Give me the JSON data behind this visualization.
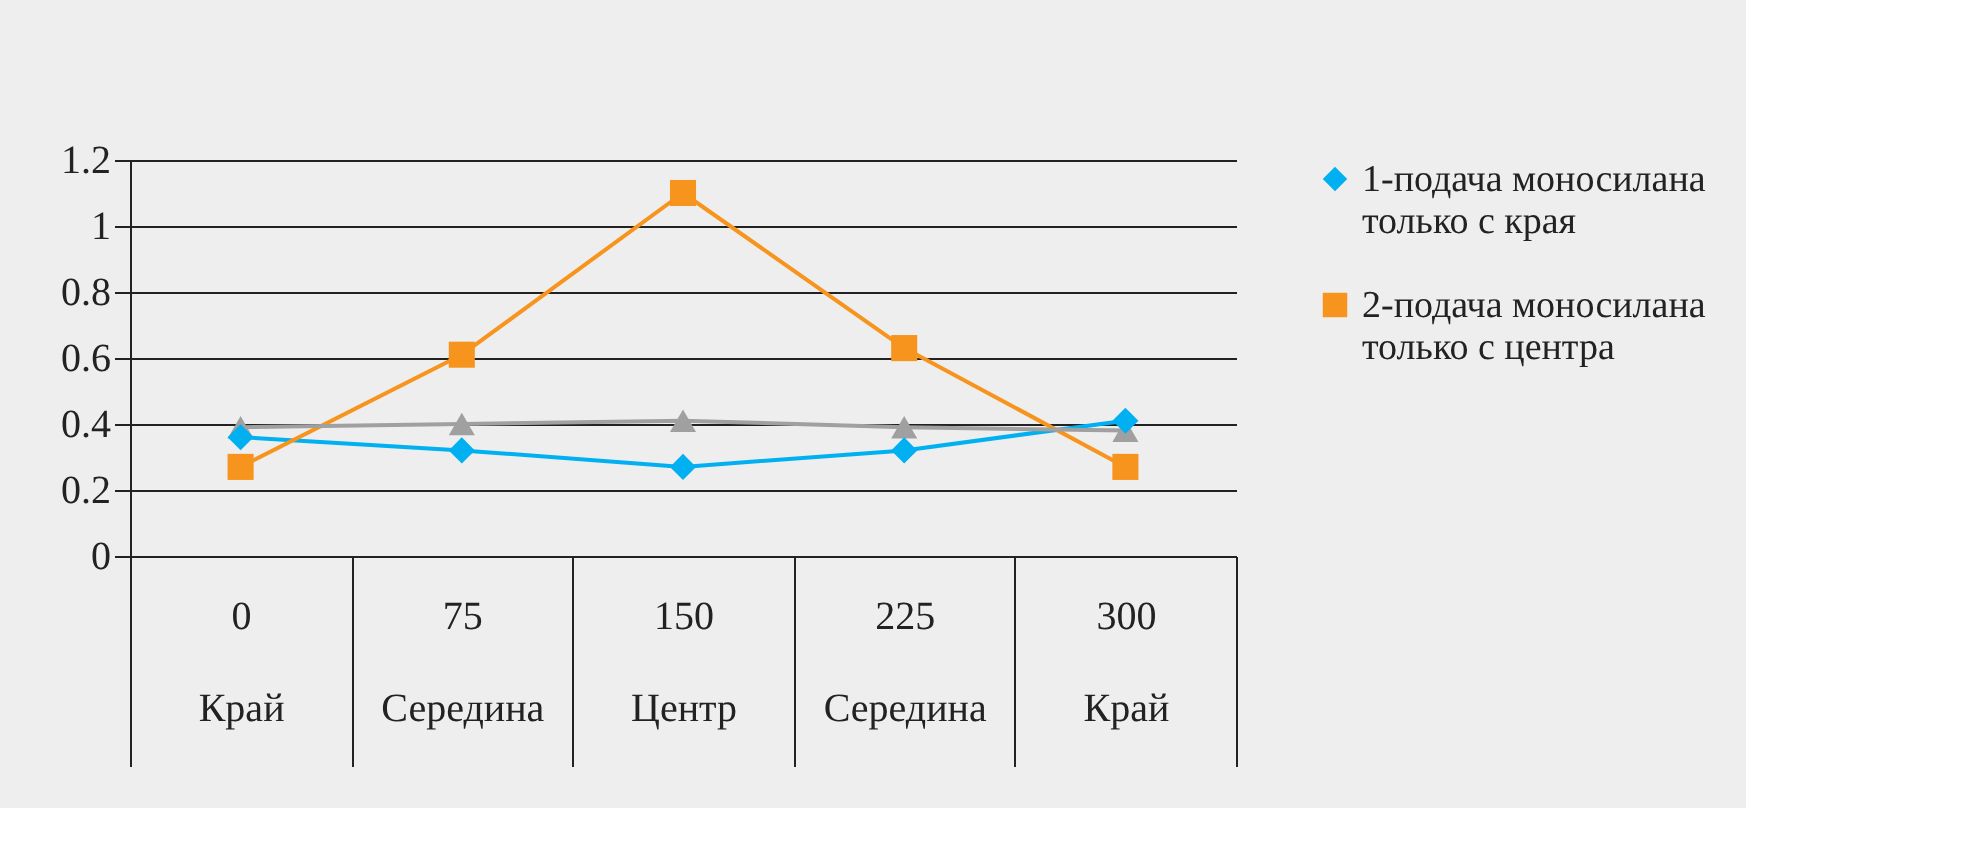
{
  "chart_data": {
    "type": "line",
    "categories": [
      "0\nКрай",
      "75\nСередина",
      "150\nЦентр",
      "225\nСередина",
      "300\nКрай"
    ],
    "series": [
      {
        "name": "1-подача моносилана только с края",
        "color": "#00b0f0",
        "marker": "diamond",
        "values": [
          0.36,
          0.32,
          0.27,
          0.32,
          0.41
        ]
      },
      {
        "name": "2-подача моносилана только с центра",
        "color": "#f7941d",
        "marker": "square",
        "values": [
          0.27,
          0.61,
          1.1,
          0.63,
          0.27
        ]
      },
      {
        "color": "#a0a0a0",
        "marker": "triangle",
        "values": [
          0.39,
          0.4,
          0.41,
          0.39,
          0.38
        ]
      }
    ],
    "ylim": [
      0,
      1.2
    ],
    "yticks": [
      0,
      0.2,
      0.4,
      0.6,
      0.8,
      1,
      1.2
    ],
    "grid": "y",
    "legend": "right"
  }
}
